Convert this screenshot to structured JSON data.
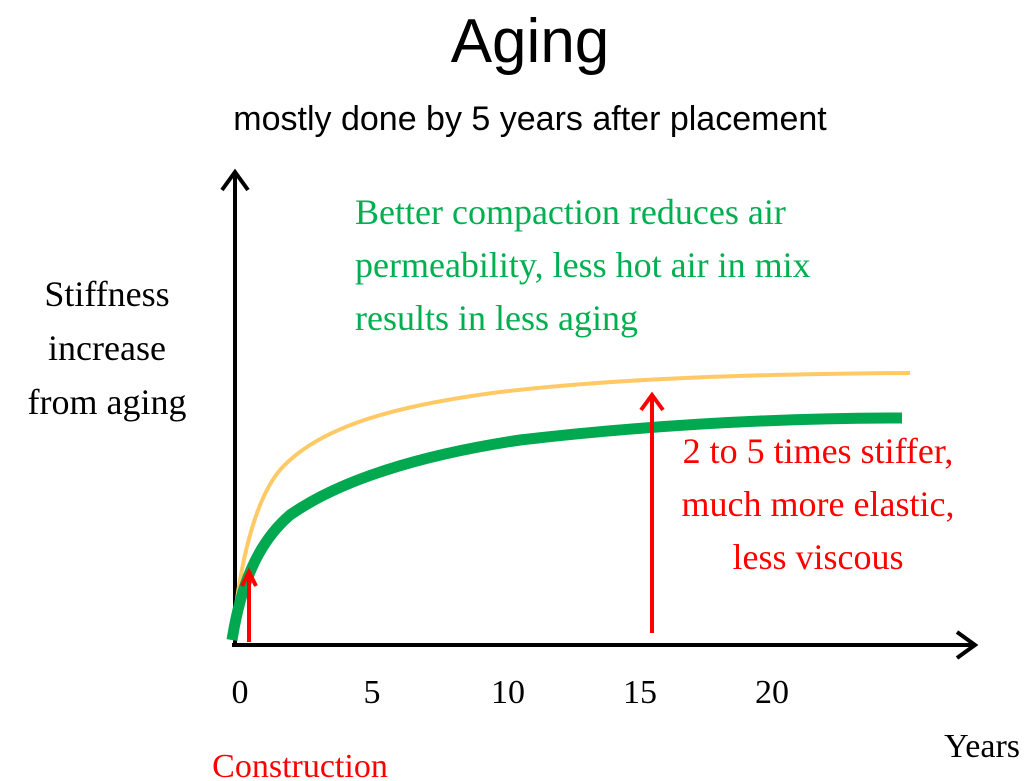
{
  "title": "Aging",
  "subtitle": "mostly done by 5 years after placement",
  "y_axis_label": [
    "Stiffness",
    "increase",
    "from aging"
  ],
  "x_axis_label": "Years",
  "x_ticks": [
    "0",
    "5",
    "10",
    "15",
    "20"
  ],
  "construction_label": "Construction",
  "green_note": [
    "Better compaction reduces air",
    "permeability, less hot air in mix",
    "results in less aging"
  ],
  "red_note": [
    "2 to 5 times stiffer,",
    "much more elastic,",
    "less viscous"
  ]
}
